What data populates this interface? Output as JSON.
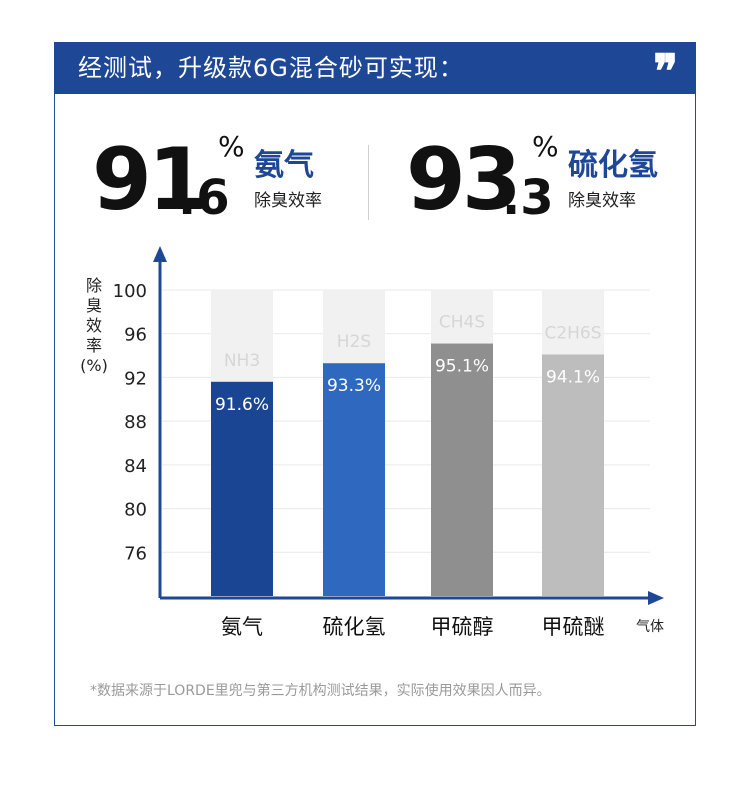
{
  "header": {
    "title": "经测试，升级款6G混合砂可实现：",
    "quote_icon": "quote-mark-icon"
  },
  "stats": [
    {
      "big": "91",
      "small": ".6",
      "percent": "%",
      "gas": "氨气",
      "sub": "除臭效率"
    },
    {
      "big": "93",
      "small": ".3",
      "percent": "%",
      "gas": "硫化氢",
      "sub": "除臭效率"
    }
  ],
  "chart_data": {
    "type": "bar",
    "ylabel": "除臭效率(%)",
    "ylabel_lines": [
      "除",
      "臭",
      "效",
      "率",
      "(%)"
    ],
    "xlabel": "气体",
    "yticks": [
      100,
      96,
      92,
      88,
      84,
      80,
      76
    ],
    "ylim": [
      72,
      100
    ],
    "categories": [
      "氨气",
      "硫化氢",
      "甲硫醇",
      "甲硫醚"
    ],
    "formulas": [
      "NH3",
      "H2S",
      "CH4S",
      "C2H6S"
    ],
    "values": [
      91.6,
      93.3,
      95.1,
      94.1
    ],
    "value_labels": [
      "91.6%",
      "93.3%",
      "95.1%",
      "94.1%"
    ],
    "colors": [
      "#1a4592",
      "#2f68bf",
      "#8f8f8f",
      "#bdbdbd"
    ],
    "background_bar_color": "#f1f1f1"
  },
  "footnote": "*数据来源于LORDE里兜与第三方机构测试结果，实际使用效果因人而异。"
}
